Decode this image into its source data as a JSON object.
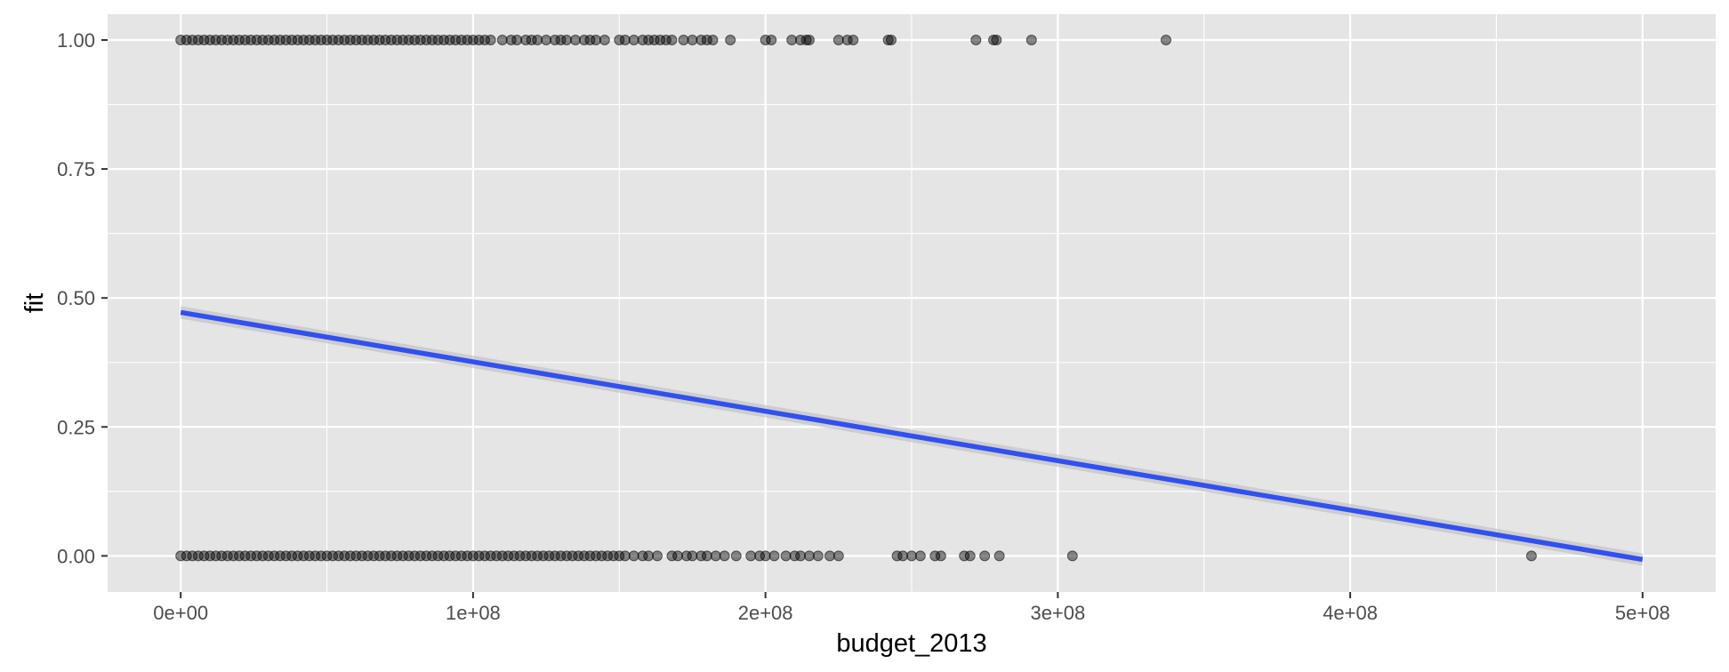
{
  "chart_data": {
    "type": "scatter",
    "title": "",
    "xlabel": "budget_2013",
    "ylabel": "fit",
    "xlim": [
      -25000000,
      525000000
    ],
    "ylim": [
      -0.07,
      1.05
    ],
    "x_ticks": [
      {
        "value": 0,
        "label": "0e+00"
      },
      {
        "value": 100000000,
        "label": "1e+08"
      },
      {
        "value": 200000000,
        "label": "2e+08"
      },
      {
        "value": 300000000,
        "label": "3e+08"
      },
      {
        "value": 400000000,
        "label": "4e+08"
      },
      {
        "value": 500000000,
        "label": "5e+08"
      }
    ],
    "y_ticks": [
      {
        "value": 0.0,
        "label": "0.00"
      },
      {
        "value": 0.25,
        "label": "0.25"
      },
      {
        "value": 0.5,
        "label": "0.50"
      },
      {
        "value": 0.75,
        "label": "0.75"
      },
      {
        "value": 1.0,
        "label": "1.00"
      }
    ],
    "grid": true,
    "series": [
      {
        "y": 1,
        "x": [
          0,
          2000000,
          4000000,
          6000000,
          8000000,
          10000000,
          12000000,
          14000000,
          16000000,
          18000000,
          20000000,
          22000000,
          24000000,
          26000000,
          28000000,
          30000000,
          32000000,
          34000000,
          36000000,
          38000000,
          40000000,
          42000000,
          44000000,
          46000000,
          48000000,
          50000000,
          52000000,
          54000000,
          56000000,
          58000000,
          60000000,
          62000000,
          64000000,
          66000000,
          68000000,
          70000000,
          72000000,
          74000000,
          76000000,
          78000000,
          80000000,
          82000000,
          84000000,
          86000000,
          88000000,
          90000000,
          92000000,
          94000000,
          96000000,
          98000000,
          100000000,
          102000000,
          104000000,
          106000000,
          110000000,
          113000000,
          115000000,
          118000000,
          120000000,
          122000000,
          125000000,
          128000000,
          130000000,
          132000000,
          135000000,
          138000000,
          140000000,
          142000000,
          145000000,
          150000000,
          152000000,
          155000000,
          158000000,
          160000000,
          162000000,
          164000000,
          166000000,
          168000000,
          172000000,
          175000000,
          178000000,
          180000000,
          182000000,
          188000000,
          200000000,
          202000000,
          209000000,
          212000000,
          214000000,
          215000000,
          225000000,
          228000000,
          230000000,
          242000000,
          243000000,
          272000000,
          278000000,
          279000000,
          291000000,
          337000000
        ]
      },
      {
        "y": 0,
        "x": [
          0,
          2000000,
          4000000,
          6000000,
          8000000,
          10000000,
          12000000,
          14000000,
          16000000,
          18000000,
          20000000,
          22000000,
          24000000,
          26000000,
          28000000,
          30000000,
          32000000,
          34000000,
          36000000,
          38000000,
          40000000,
          42000000,
          44000000,
          46000000,
          48000000,
          50000000,
          52000000,
          54000000,
          56000000,
          58000000,
          60000000,
          62000000,
          64000000,
          66000000,
          68000000,
          70000000,
          72000000,
          74000000,
          76000000,
          78000000,
          80000000,
          82000000,
          84000000,
          86000000,
          88000000,
          90000000,
          92000000,
          94000000,
          96000000,
          98000000,
          100000000,
          102000000,
          104000000,
          106000000,
          108000000,
          110000000,
          112000000,
          114000000,
          116000000,
          118000000,
          120000000,
          122000000,
          124000000,
          126000000,
          128000000,
          130000000,
          132000000,
          134000000,
          136000000,
          138000000,
          140000000,
          142000000,
          144000000,
          146000000,
          148000000,
          150000000,
          152000000,
          155000000,
          158000000,
          160000000,
          163000000,
          168000000,
          170000000,
          173000000,
          175000000,
          178000000,
          180000000,
          183000000,
          186000000,
          190000000,
          195000000,
          198000000,
          200000000,
          203000000,
          207000000,
          210000000,
          212000000,
          215000000,
          218000000,
          222000000,
          225000000,
          245000000,
          247000000,
          250000000,
          253000000,
          258000000,
          260000000,
          268000000,
          270000000,
          275000000,
          280000000,
          305000000,
          462000000
        ]
      }
    ],
    "trend_line": {
      "color": "#3050f0",
      "band_color": "#bdbdbd",
      "x": [
        0,
        500000000
      ],
      "y": [
        0.472,
        -0.007
      ]
    },
    "colors": {
      "panel": "#e5e5e5",
      "grid_major": "#ffffff",
      "point": "#000000"
    }
  }
}
